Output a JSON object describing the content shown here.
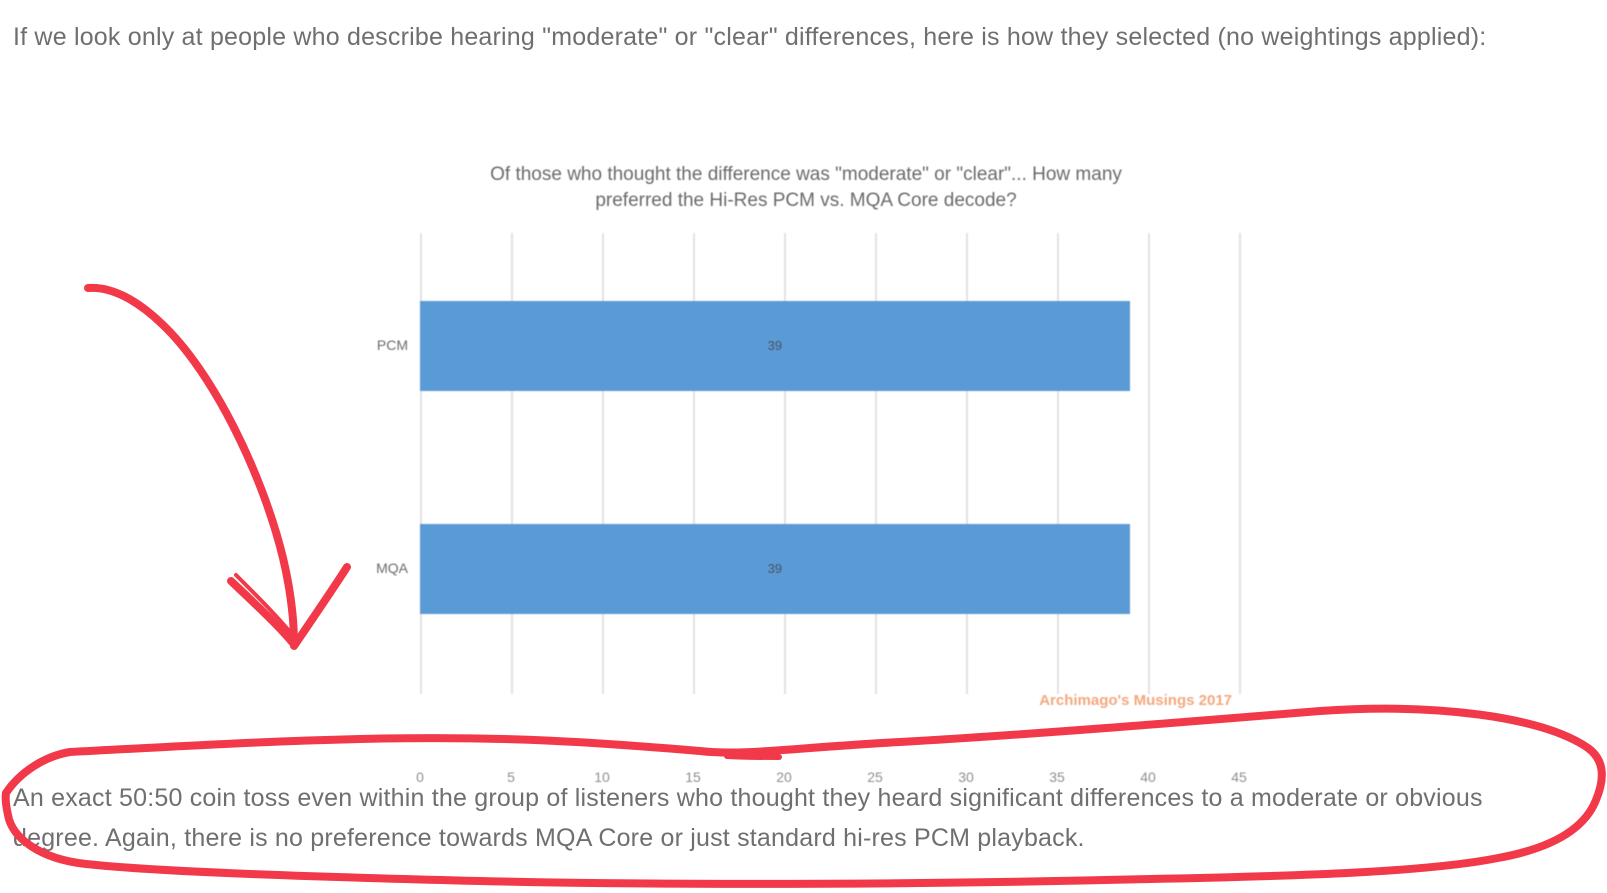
{
  "page": {
    "intro_paragraph": "If we look only at people who describe hearing \"moderate\" or \"clear\" differences, here is how they selected (no weightings applied):",
    "conclusion_paragraph": "An exact 50:50 coin toss even within the group of listeners who thought they heard significant differences to a moderate or obvious degree. Again, there is no preference towards MQA Core or just standard hi-res PCM playback."
  },
  "chart_data": {
    "type": "bar",
    "orientation": "horizontal",
    "title": "Of those who thought the difference was \"moderate\" or \"clear\"... How many preferred the Hi-Res PCM vs. MQA Core decode?",
    "categories": [
      "PCM",
      "MQA"
    ],
    "values": [
      39,
      39
    ],
    "data_labels": [
      "39",
      "39"
    ],
    "xlim": [
      0,
      45
    ],
    "x_ticks": [
      0,
      5,
      10,
      15,
      20,
      25,
      30,
      35,
      40,
      45
    ],
    "grid": true,
    "legend": "none",
    "bar_color": "#5b9bd5",
    "data_label_color": "#44536a",
    "watermark": "Archimago's Musings 2017",
    "watermark_color": "#f3a87e"
  },
  "annotations": {
    "color": "#f2394a",
    "arrow": "hand-drawn red arrow pointing down to chart conclusion",
    "ellipse": "hand-drawn red ellipse circling conclusion paragraph"
  }
}
